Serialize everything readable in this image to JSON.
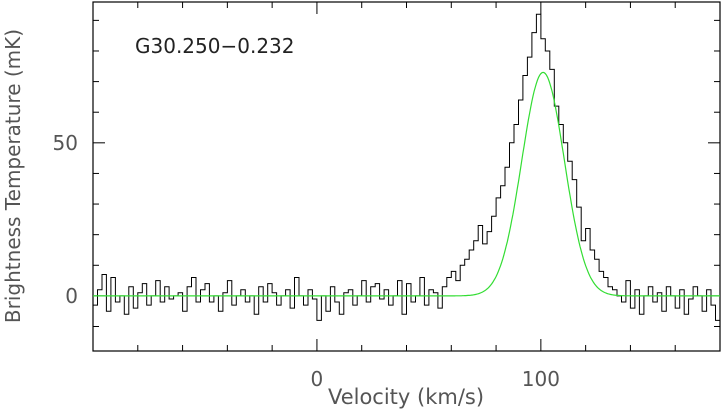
{
  "chart_data": {
    "type": "line",
    "title": "",
    "annotation": "G30.250−0.232",
    "xlabel": "Velocity (km/s)",
    "ylabel": "Brightness Temperature (mK)",
    "xlim": [
      -100,
      180
    ],
    "ylim": [
      -18,
      96
    ],
    "x_ticks": [
      0,
      100
    ],
    "y_ticks": [
      0,
      50
    ],
    "x_tick_labels": [
      "0",
      "100"
    ],
    "y_tick_labels": [
      "0",
      "50"
    ],
    "grid": false,
    "series": [
      {
        "style": "step",
        "color": "#000000",
        "x": [
          -100,
          -98,
          -96,
          -94,
          -92,
          -90,
          -88,
          -86,
          -84,
          -82,
          -80,
          -78,
          -76,
          -74,
          -72,
          -70,
          -68,
          -66,
          -64,
          -62,
          -60,
          -58,
          -56,
          -54,
          -52,
          -50,
          -48,
          -46,
          -44,
          -42,
          -40,
          -38,
          -36,
          -34,
          -32,
          -30,
          -28,
          -26,
          -24,
          -22,
          -20,
          -18,
          -16,
          -14,
          -12,
          -10,
          -8,
          -6,
          -4,
          -2,
          0,
          2,
          4,
          6,
          8,
          10,
          12,
          14,
          16,
          18,
          20,
          22,
          24,
          26,
          28,
          30,
          32,
          34,
          36,
          38,
          40,
          42,
          44,
          46,
          48,
          50,
          52,
          54,
          56,
          58,
          60,
          62,
          64,
          66,
          68,
          70,
          72,
          74,
          76,
          78,
          80,
          82,
          84,
          86,
          88,
          90,
          92,
          94,
          96,
          98,
          100,
          102,
          104,
          106,
          108,
          110,
          112,
          114,
          116,
          118,
          120,
          122,
          124,
          126,
          128,
          130,
          132,
          134,
          136,
          138,
          140,
          142,
          144,
          146,
          148,
          150,
          152,
          154,
          156,
          158,
          160,
          162,
          164,
          166,
          168,
          170,
          172,
          174,
          176,
          178
        ],
        "y": [
          -3,
          2,
          7,
          -5,
          6,
          -2,
          0,
          -6,
          3,
          -4,
          1,
          4,
          -3,
          0,
          5,
          -2,
          3,
          -1,
          0,
          1,
          -5,
          3,
          6,
          -2,
          2,
          4,
          -2,
          0,
          -5,
          1,
          5,
          -3,
          0,
          2,
          -2,
          0,
          -6,
          3,
          -2,
          4,
          1,
          -3,
          0,
          2,
          -4,
          6,
          0,
          -3,
          2,
          -1,
          -8,
          0,
          -5,
          3,
          -2,
          -6,
          1,
          2,
          -3,
          0,
          5,
          -2,
          3,
          4,
          -1,
          2,
          -3,
          0,
          5,
          -6,
          4,
          -2,
          0,
          6,
          -3,
          2,
          1,
          -4,
          3,
          6,
          8,
          5,
          10,
          12,
          15,
          18,
          23,
          17,
          21,
          26,
          32,
          36,
          42,
          50,
          56,
          64,
          72,
          78,
          86,
          92,
          84,
          80,
          74,
          62,
          56,
          50,
          44,
          38,
          29,
          18,
          22,
          15,
          12,
          8,
          6,
          3,
          2,
          0,
          -2,
          5,
          -4,
          2,
          -6,
          0,
          3,
          -2,
          1,
          -5,
          3,
          0,
          -4,
          2,
          -6,
          -1,
          3,
          0,
          -5,
          2,
          -3,
          -8
        ]
      },
      {
        "style": "line",
        "color": "#33dd33",
        "model": "gaussian",
        "amplitude": 73,
        "center": 101,
        "sigma": 9.5,
        "baseline": 0
      }
    ]
  }
}
